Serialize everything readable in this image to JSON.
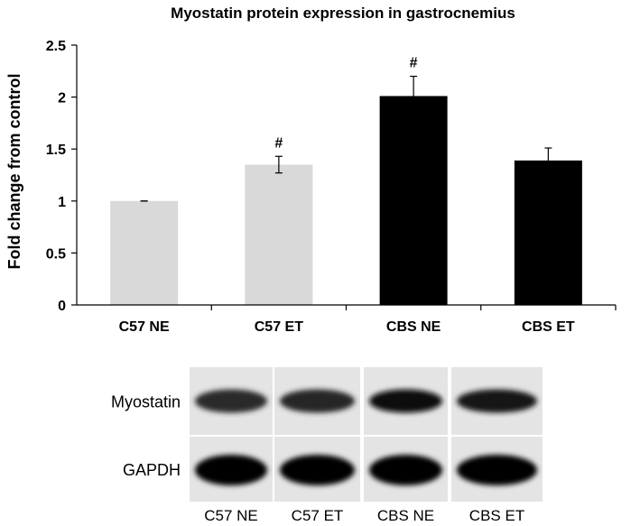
{
  "chart_data": {
    "type": "bar",
    "title": "Myostatin protein expression in gastrocnemius",
    "xlabel": "",
    "ylabel": "Fold change from control",
    "ylim": [
      0,
      2.5
    ],
    "yticks": [
      "0",
      "0.5",
      "1",
      "1.5",
      "2",
      "2.5"
    ],
    "grid": false,
    "legend": "none",
    "categories": [
      "C57 NE",
      "C57 ET",
      "CBS NE",
      "CBS ET"
    ],
    "values": [
      1.0,
      1.35,
      2.01,
      1.39
    ],
    "errors": [
      0.0,
      0.08,
      0.19,
      0.12
    ],
    "annotations": [
      "",
      "#",
      "#",
      ""
    ],
    "colors": [
      "#d9d9d9",
      "#d9d9d9",
      "#000000",
      "#000000"
    ]
  },
  "blot": {
    "rows": [
      {
        "label": "Myostatin",
        "darkness": [
          0.82,
          0.84,
          0.97,
          0.9
        ]
      },
      {
        "label": "GAPDH",
        "darkness": [
          1.0,
          1.0,
          1.0,
          1.0
        ]
      }
    ],
    "lanes": [
      "C57 NE",
      "C57 ET",
      "CBS NE",
      "CBS ET"
    ]
  }
}
